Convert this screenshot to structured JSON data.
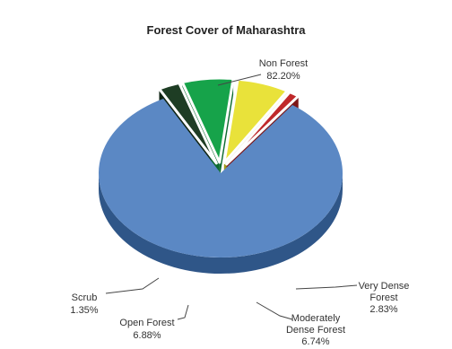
{
  "chart_data": {
    "type": "pie",
    "title": "Forest Cover of Maharashtra",
    "slices": [
      {
        "name": "Non Forest",
        "value": 82.2,
        "label": "82.20%",
        "color": "#5b88c4",
        "side": "#2f5688"
      },
      {
        "name": "Very Dense Forest",
        "value": 2.83,
        "label": "2.83%",
        "color": "#1e3d24",
        "side": "#0f2414"
      },
      {
        "name": "Moderately Dense Forest",
        "value": 6.74,
        "label": "6.74%",
        "color": "#16a34a",
        "side": "#0b6a2e"
      },
      {
        "name": "Open Forest",
        "value": 6.88,
        "label": "6.88%",
        "color": "#e9e23a",
        "side": "#9e9a17"
      },
      {
        "name": "Scrub",
        "value": 1.35,
        "label": "1.35%",
        "color": "#c0282a",
        "side": "#7c1618"
      }
    ],
    "legend": "none",
    "style": "3d-exploded"
  }
}
